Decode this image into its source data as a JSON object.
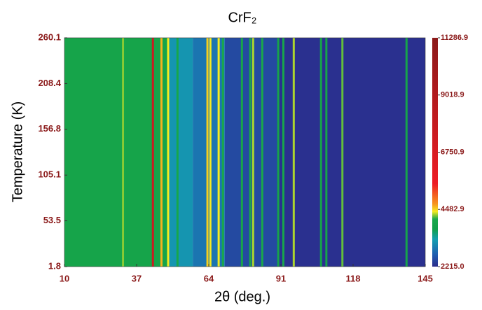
{
  "chart_data": {
    "type": "heatmap",
    "title": "CrF₂",
    "x_label": "2θ (deg.)",
    "y_label": "Temperature (K)",
    "xlim": [
      10,
      145
    ],
    "xticks": [
      10,
      37,
      64,
      91,
      118,
      145
    ],
    "ylim": [
      1.8,
      260.1
    ],
    "yticks": [
      1.8,
      53.5,
      105.1,
      156.8,
      208.4,
      260.1
    ],
    "clim": [
      2215,
      11286.9
    ],
    "cticks": [
      {
        "value": 2215,
        "label": "2215.0"
      },
      4482.9,
      6750.9,
      9018.9,
      11286.9
    ],
    "colormap": [
      [
        2215,
        "#2b2c8c"
      ],
      [
        2700,
        "#1f5fb0"
      ],
      [
        3300,
        "#13a0b0"
      ],
      [
        3700,
        "#12a04a"
      ],
      [
        4100,
        "#1aa84a"
      ],
      [
        4400,
        "#f5eb20"
      ],
      [
        4700,
        "#f7941d"
      ],
      [
        5500,
        "#ed1c24"
      ],
      [
        11286.9,
        "#8b1a1a"
      ]
    ],
    "background": {
      "bins": [
        10,
        49,
        58,
        70,
        90,
        145
      ],
      "values": [
        3900,
        3200,
        2900,
        2500,
        2250
      ]
    },
    "peaks": {
      "x": [
        32,
        32.6,
        43.1,
        46.3,
        48.8,
        52.3,
        63.5,
        64.6,
        67.7,
        69.3,
        76.4,
        79.5,
        80.6,
        84,
        90,
        91.9,
        95.8,
        106,
        108,
        114,
        138
      ],
      "values": [
        4300,
        4000,
        7500,
        4600,
        4400,
        4000,
        4500,
        4400,
        4400,
        4100,
        4000,
        4000,
        4300,
        4100,
        3900,
        4000,
        4300,
        3900,
        3900,
        4200,
        3900
      ]
    }
  }
}
